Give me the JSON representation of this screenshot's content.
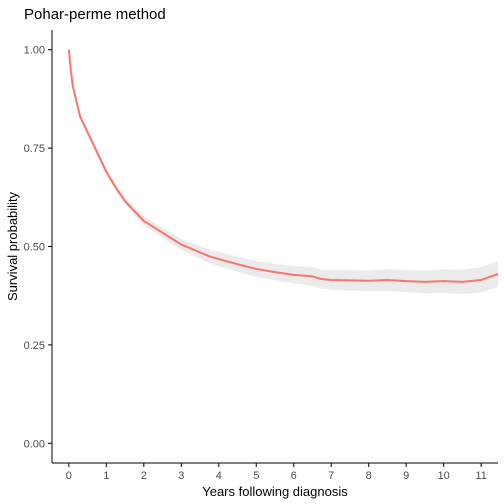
{
  "chart_data": {
    "type": "line",
    "title": "Pohar-perme method",
    "xlabel": "Years following diagnosis",
    "ylabel": "Survival probability",
    "xlim": [
      -0.45,
      11.45
    ],
    "ylim": [
      -0.05,
      1.05
    ],
    "x_ticks": [
      "0",
      "1",
      "2",
      "3",
      "4",
      "5",
      "6",
      "7",
      "8",
      "9",
      "10",
      "11"
    ],
    "y_ticks": [
      "0.00",
      "0.25",
      "0.50",
      "0.75",
      "1.00"
    ],
    "grid": false,
    "legend": "none",
    "line_color": "#F8766D",
    "band_color": "#EBEBEB",
    "series": [
      {
        "x": [
          0,
          0.05,
          0.1,
          0.2,
          0.3,
          0.5,
          0.75,
          1.0,
          1.25,
          1.5,
          1.75,
          2.0,
          2.25,
          2.5,
          2.75,
          3.0,
          3.25,
          3.5,
          3.75,
          4.0,
          4.5,
          5.0,
          5.5,
          6.0,
          6.25,
          6.5,
          6.75,
          7.0,
          7.5,
          8.0,
          8.5,
          9.0,
          9.5,
          10.0,
          10.5,
          11.0,
          11.45
        ],
        "y": [
          1.0,
          0.95,
          0.91,
          0.87,
          0.83,
          0.79,
          0.74,
          0.69,
          0.65,
          0.615,
          0.59,
          0.565,
          0.55,
          0.535,
          0.52,
          0.505,
          0.495,
          0.485,
          0.475,
          0.468,
          0.455,
          0.443,
          0.435,
          0.428,
          0.426,
          0.424,
          0.417,
          0.415,
          0.414,
          0.413,
          0.415,
          0.412,
          0.41,
          0.412,
          0.41,
          0.415,
          0.43
        ],
        "lower": [
          1.0,
          0.945,
          0.904,
          0.864,
          0.824,
          0.783,
          0.733,
          0.682,
          0.642,
          0.606,
          0.58,
          0.554,
          0.538,
          0.522,
          0.506,
          0.491,
          0.48,
          0.469,
          0.458,
          0.45,
          0.436,
          0.423,
          0.414,
          0.406,
          0.403,
          0.4,
          0.393,
          0.39,
          0.388,
          0.387,
          0.387,
          0.384,
          0.381,
          0.382,
          0.379,
          0.383,
          0.397
        ],
        "upper": [
          1.0,
          0.955,
          0.916,
          0.876,
          0.836,
          0.797,
          0.747,
          0.698,
          0.658,
          0.624,
          0.6,
          0.576,
          0.562,
          0.548,
          0.534,
          0.519,
          0.51,
          0.501,
          0.492,
          0.486,
          0.474,
          0.463,
          0.456,
          0.45,
          0.449,
          0.448,
          0.441,
          0.44,
          0.44,
          0.439,
          0.443,
          0.44,
          0.439,
          0.442,
          0.441,
          0.447,
          0.463
        ]
      }
    ]
  }
}
